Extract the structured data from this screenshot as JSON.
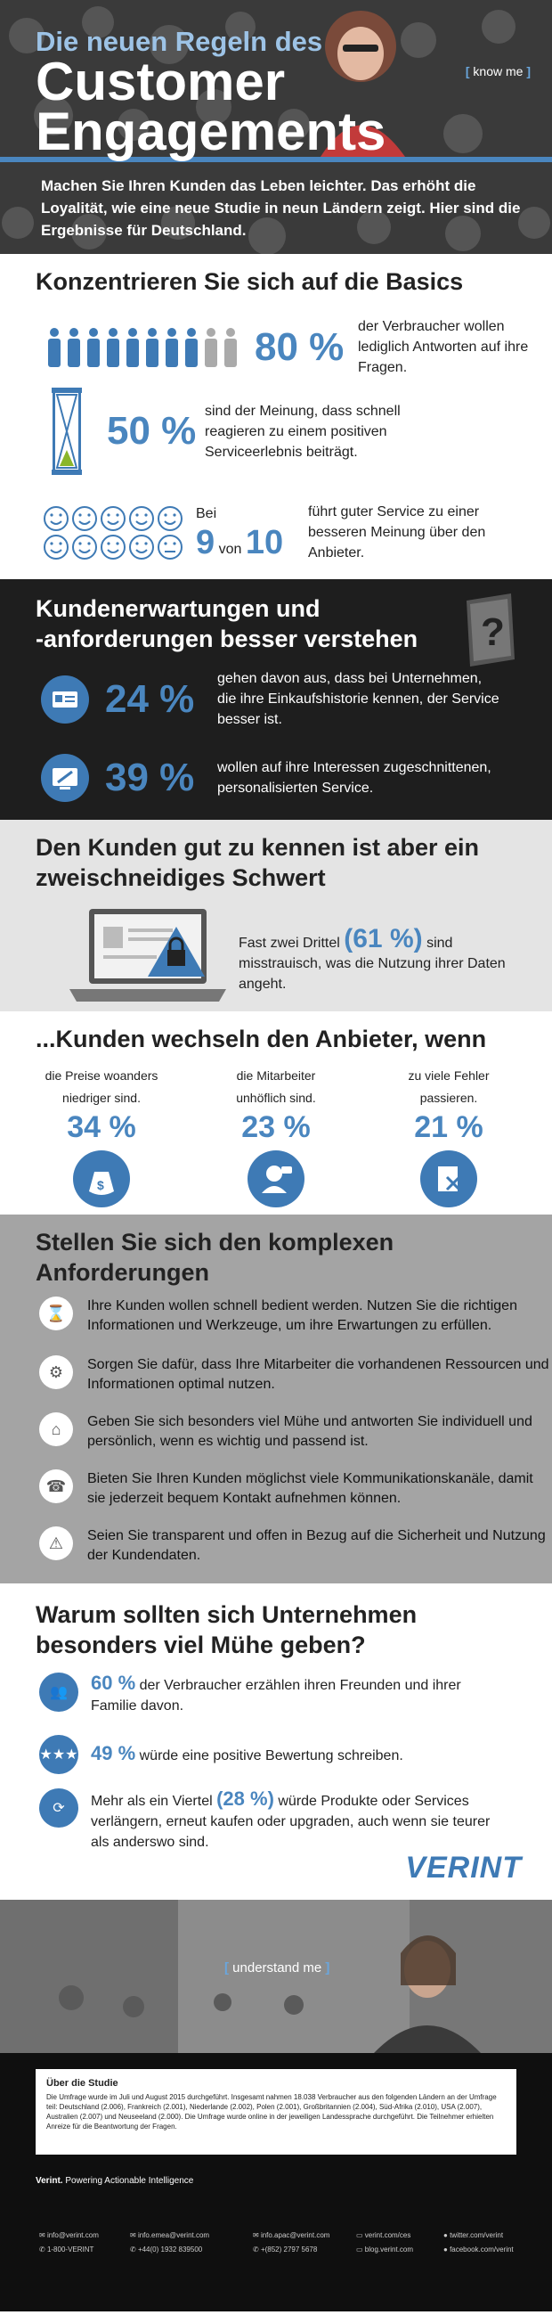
{
  "hero": {
    "title_small": "Die neuen Regeln des",
    "title_line1": "Customer",
    "title_line2": "Engagements",
    "know_me": "know me",
    "intro": "Machen Sie Ihren Kunden das Leben leichter. Das erhöht die Loyalität, wie eine neue Studie in neun Ländern zeigt. Hier sind die Ergebnisse für Deutschland."
  },
  "basics": {
    "heading": "Konzentrieren Sie sich auf die Basics",
    "stat1": {
      "value": "80 %",
      "text": "der Verbraucher wollen lediglich Antworten auf ihre Fragen.",
      "people_total": 10,
      "people_filled": 8
    },
    "stat2": {
      "value": "50 %",
      "text": "sind der Meinung, dass schnell reagieren zu einem positiven Serviceerlebnis beiträgt."
    },
    "stat3": {
      "bei": "Bei",
      "value": "9",
      "von": "von",
      "total": "10",
      "text": "führt guter Service zu einer besseren Meinung über den Anbieter.",
      "smiley_total": 10,
      "smiley_happy": 9
    }
  },
  "expect": {
    "heading_line1": "Kundenerwartungen und",
    "heading_line2": "-anforderungen besser verstehen",
    "stat1": {
      "value": "24 %",
      "text": "gehen davon aus, dass bei Unternehmen, die ihre Einkaufshistorie kennen, der Service besser ist."
    },
    "stat2": {
      "value": "39 %",
      "text": "wollen auf ihre Interessen zugeschnittenen, personalisierten Service."
    }
  },
  "sword": {
    "heading_line1": "Den Kunden gut zu kennen ist aber ein",
    "heading_line2": "zweischneidiges Schwert",
    "text_pre": "Fast zwei Drittel",
    "value": "(61 %)",
    "text_post": "sind misstrauisch, was die Nutzung ihrer Daten angeht."
  },
  "switch": {
    "heading": "...Kunden wechseln den Anbieter, wenn",
    "items": [
      {
        "text1": "die Preise woanders",
        "text2": "niedriger sind.",
        "value": "34 %"
      },
      {
        "text1": "die Mitarbeiter",
        "text2": "unhöflich sind.",
        "value": "23 %"
      },
      {
        "text1": "zu viele Fehler",
        "text2": "passieren.",
        "value": "21 %"
      }
    ]
  },
  "complex": {
    "heading_line1": "Stellen Sie sich den komplexen",
    "heading_line2": "Anforderungen",
    "items": [
      "Ihre Kunden wollen schnell bedient werden. Nutzen Sie die richtigen Informationen und Werkzeuge, um ihre Erwartungen zu erfüllen.",
      "Sorgen Sie dafür, dass Ihre Mitarbeiter die vorhandenen Ressourcen und Informationen optimal nutzen.",
      "Geben Sie sich besonders viel Mühe und antworten Sie individuell und persönlich, wenn es wichtig und passend ist.",
      "Bieten Sie Ihren Kunden möglichst viele Kommunikationskanäle, damit sie jederzeit bequem Kontakt aufnehmen können.",
      "Seien Sie transparent und offen in Bezug auf die Sicherheit und Nutzung der Kundendaten."
    ]
  },
  "why": {
    "heading_line1": "Warum sollten sich Unternehmen",
    "heading_line2": "besonders viel Mühe geben?",
    "stat1": {
      "value": "60 %",
      "text": "der Verbraucher erzählen ihren Freunden und ihrer Familie davon."
    },
    "stat2": {
      "value": "49 %",
      "text": "würde eine positive Bewertung schreiben."
    },
    "stat3": {
      "text_pre": "Mehr als ein Viertel",
      "value": "(28 %)",
      "text_post": "würde Produkte oder Services verlängern, erneut kaufen oder upgraden, auch wenn sie teurer als anderswo sind."
    },
    "logo": "VERINT"
  },
  "understand": {
    "label": "understand me"
  },
  "footer": {
    "box_title": "Über die Studie",
    "box_text": "Die Umfrage wurde im Juli und August 2015 durchgeführt. Insgesamt nahmen 18.038 Verbraucher aus den folgenden Ländern an der Umfrage teil: Deutschland (2.006), Frankreich (2.001), Niederlande (2.002), Polen (2.001), Großbritannien (2.004), Süd-Afrika (2.010), USA (2.007), Australien (2.007) und Neuseeland (2.000). Die Umfrage wurde online in der jeweiligen Landessprache durchgeführt. Die Teilnehmer erhielten Anreize für die Beantwortung der Fragen.",
    "brand": "Verint.",
    "tagline": "Powering Actionable Intelligence",
    "contacts": [
      "info@verint.com",
      "1-800-VERINT",
      "info.emea@verint.com",
      "+44(0) 1932 839500",
      "info.apac@verint.com",
      "+(852) 2797 5678",
      "verint.com/ces",
      "blog.verint.com",
      "twitter.com/verint",
      "facebook.com/verint"
    ]
  }
}
